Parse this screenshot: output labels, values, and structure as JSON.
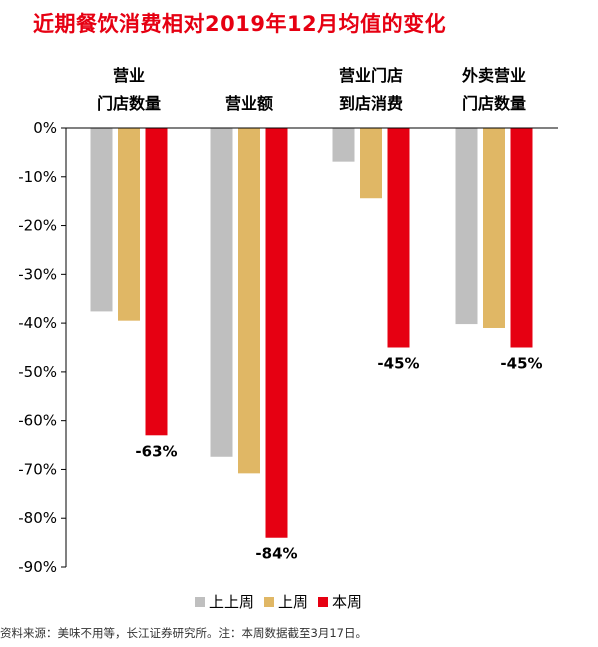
{
  "title": "近期餐饮消费相对2019年12月均值的变化",
  "source": "资料来源：美味不用等，长江证券研究所。注：本周数据截至3月17日。",
  "legend": [
    {
      "label": "上上周",
      "color": "#bfbfbf"
    },
    {
      "label": "上周",
      "color": "#e0b765"
    },
    {
      "label": "本周",
      "color": "#e60012"
    }
  ],
  "chart_data": {
    "type": "bar",
    "categories": [
      [
        "营业",
        "门店数量"
      ],
      [
        "营业额"
      ],
      [
        "营业门店",
        "到店消费"
      ],
      [
        "外卖营业",
        "门店数量"
      ]
    ],
    "series": [
      {
        "name": "上上周",
        "values": [
          -37.6,
          -67.4,
          -6.9,
          -40.2
        ]
      },
      {
        "name": "上周",
        "values": [
          -39.5,
          -70.8,
          -14.4,
          -41.0
        ]
      },
      {
        "name": "本周",
        "values": [
          -63,
          -84,
          -45,
          -45
        ]
      }
    ],
    "data_labels": [
      "-63%",
      "-84%",
      "-45%",
      "-45%"
    ],
    "yticks": [
      "0%",
      "-10%",
      "-20%",
      "-30%",
      "-40%",
      "-50%",
      "-60%",
      "-70%",
      "-80%",
      "-90%"
    ],
    "ylim": [
      -90,
      0
    ],
    "grid": false,
    "legend_position": "bottom"
  }
}
